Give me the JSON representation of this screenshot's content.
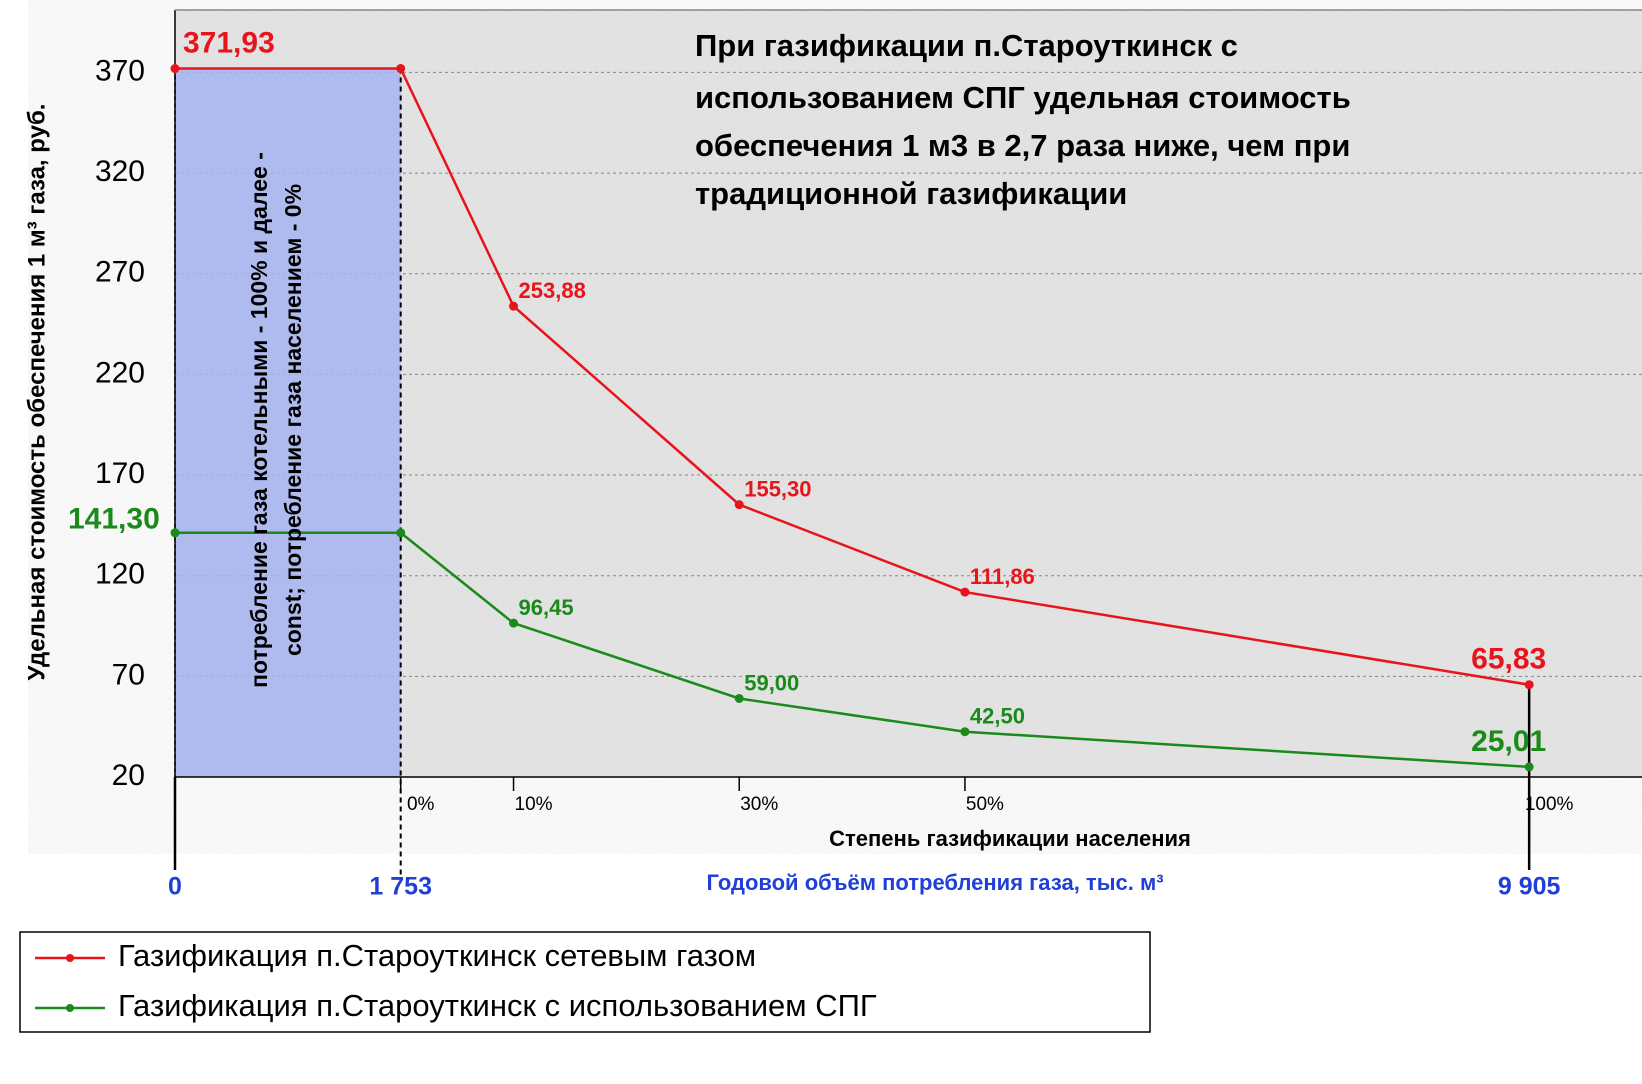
{
  "chart_data": {
    "type": "line",
    "annotation_lines": [
      "При газификации п.Староуткинск с",
      "использованием СПГ удельная стоимость",
      "обеспечения 1 м3 в 2,7 раза ниже, чем при",
      "традиционной газификации"
    ],
    "shaded_note_lines": [
      "потребление газа котельными - 100% и далее -",
      "const; потребление газа населением - 0%"
    ],
    "ylabel": "Удельная стоимость обеспечения 1 м³ газа, руб.",
    "xlabel": "Степень газификации населения",
    "x2label": "Годовой объём потребления газа, тыс. м³",
    "x": [
      -20,
      0,
      10,
      30,
      50,
      100
    ],
    "series": [
      {
        "name": "Газификация п.Староуткинск сетевым газом",
        "color": "#e8141b",
        "values": [
          371.93,
          371.93,
          253.88,
          155.3,
          111.86,
          65.83
        ],
        "value_labels": [
          "371,93",
          null,
          "253,88",
          "155,30",
          "111,86",
          "65,83"
        ]
      },
      {
        "name": "Газификация п.Староуткинск с использованием СПГ",
        "color": "#1a8a1a",
        "values": [
          141.3,
          141.3,
          96.45,
          59.0,
          42.5,
          25.01
        ],
        "value_labels": [
          "141,30",
          null,
          "96,45",
          "59,00",
          "42,50",
          "25,01"
        ]
      }
    ],
    "xlim": [
      -20,
      110
    ],
    "ylim": [
      20,
      401
    ],
    "yticks": [
      20,
      70,
      120,
      170,
      220,
      270,
      320,
      370
    ],
    "xticks": [
      {
        "value": 0,
        "label": "0%"
      },
      {
        "value": 10,
        "label": "10%"
      },
      {
        "value": 30,
        "label": "30%"
      },
      {
        "value": 50,
        "label": "50%"
      },
      {
        "value": 100,
        "label": "100%"
      }
    ],
    "x2ticks": [
      {
        "value": -20,
        "label": "0"
      },
      {
        "value": 0,
        "label": "1 753"
      },
      {
        "value": 100,
        "label": "9 905"
      }
    ],
    "grid": true,
    "legend": "bottom-left"
  }
}
